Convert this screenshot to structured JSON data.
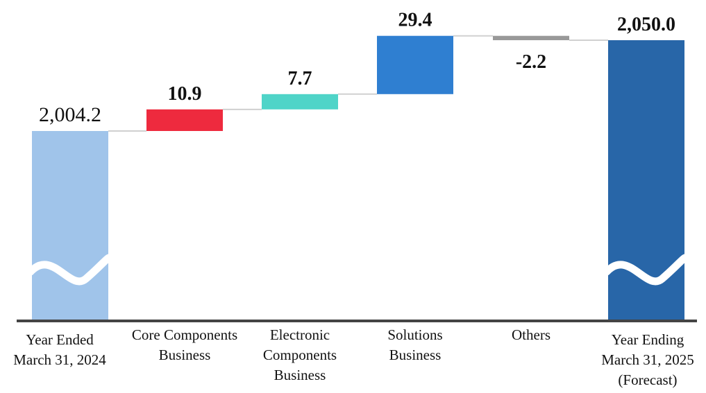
{
  "chart_data": {
    "type": "waterfall",
    "title": "",
    "xlabel": "",
    "ylabel": "",
    "categories": [
      [
        "Year Ended",
        "March 31, 2024"
      ],
      [
        "Core Components",
        "Business"
      ],
      [
        "Electronic",
        "Components",
        "Business"
      ],
      [
        "Solutions",
        "Business"
      ],
      [
        "Others"
      ],
      [
        "Year Ending",
        "March 31, 2025",
        "(Forecast)"
      ]
    ],
    "bars": [
      {
        "kind": "total",
        "value": 2004.2,
        "label": "2,004.2",
        "color": "#a0c4ea"
      },
      {
        "kind": "delta",
        "value": 10.9,
        "label": "10.9",
        "color": "#ee2a3e"
      },
      {
        "kind": "delta",
        "value": 7.7,
        "label": "7.7",
        "color": "#4fd4c8"
      },
      {
        "kind": "delta",
        "value": 29.4,
        "label": "29.4",
        "color": "#2f7fd1"
      },
      {
        "kind": "delta",
        "value": -2.2,
        "label": "-2.2",
        "color": "#999999"
      },
      {
        "kind": "total",
        "value": 2050.0,
        "label": "2,050.0",
        "color": "#2866a8"
      }
    ],
    "axis_break": true,
    "grid": false,
    "legend": "none"
  }
}
